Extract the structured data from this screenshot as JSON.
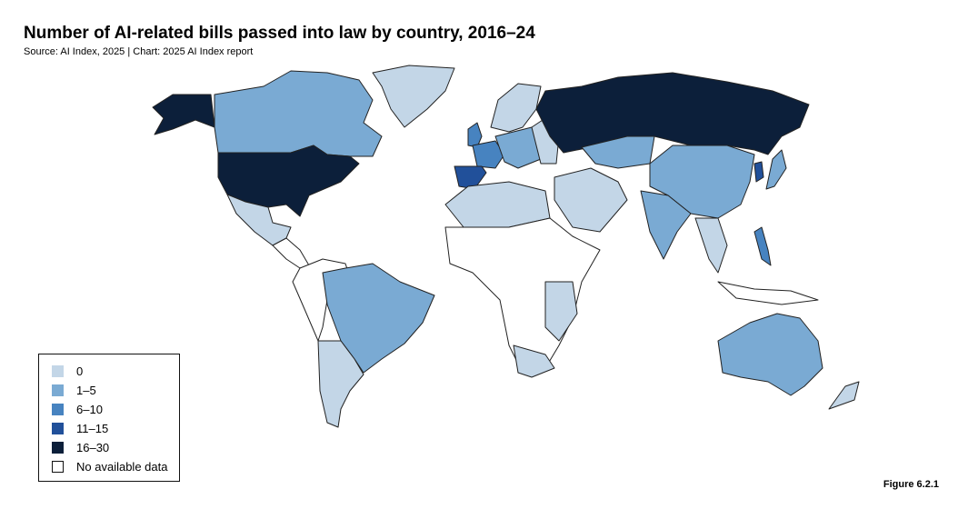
{
  "title": "Number of AI-related bills passed into law by country, 2016–24",
  "subtitle": "Source: AI Index, 2025 | Chart: 2025 AI Index report",
  "legend": {
    "items": [
      {
        "label": "0",
        "color": "#c3d6e7"
      },
      {
        "label": "1–5",
        "color": "#7aaad3"
      },
      {
        "label": "6–10",
        "color": "#4783c0"
      },
      {
        "label": "11–15",
        "color": "#21509a"
      },
      {
        "label": "16–30",
        "color": "#0c1f3a"
      },
      {
        "label": "No available data",
        "color": "#ffffff"
      }
    ]
  },
  "figure_label": "Figure 6.2.1"
}
